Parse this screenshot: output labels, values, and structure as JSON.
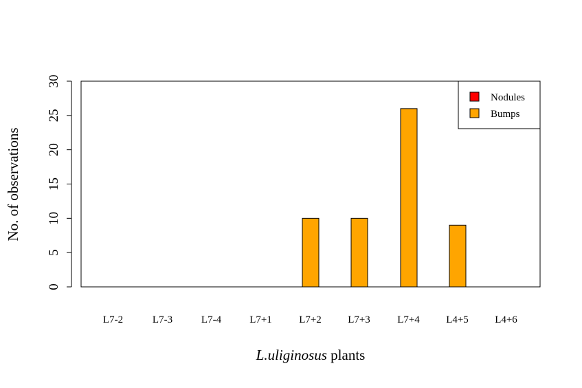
{
  "chart_data": {
    "type": "bar",
    "categories": [
      "L7-2",
      "L7-3",
      "L7-4",
      "L7+1",
      "L7+2",
      "L7+3",
      "L7+4",
      "L4+5",
      "L4+6"
    ],
    "series": [
      {
        "name": "Nodules",
        "color": "#ff0000",
        "values": [
          0,
          0,
          0,
          0,
          0,
          0,
          0,
          0,
          0
        ]
      },
      {
        "name": "Bumps",
        "color": "#ffa500",
        "values": [
          0,
          0,
          0,
          0,
          10,
          10,
          26,
          9,
          0
        ]
      }
    ],
    "ylabel": "No. of observations",
    "xlabel_italic": "L.uliginosus",
    "xlabel_rest": " plants",
    "ylim": [
      0,
      30
    ],
    "yticks": [
      0,
      5,
      10,
      15,
      20,
      25,
      30
    ],
    "grid": false,
    "legend_position": "top-right"
  }
}
